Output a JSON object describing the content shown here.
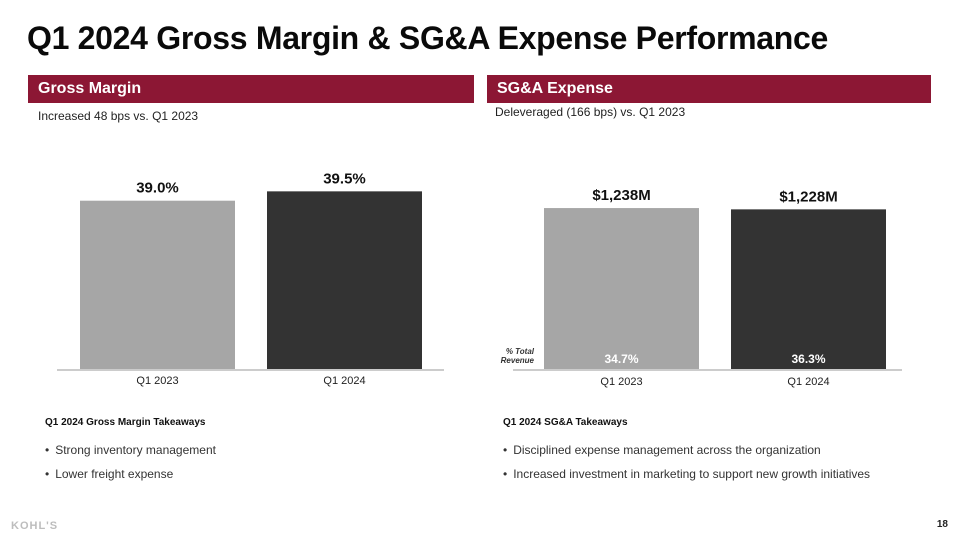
{
  "title": "Q1 2024 Gross Margin & SG&A Expense Performance",
  "sections": {
    "gross_margin": {
      "header": "Gross Margin",
      "subtitle": "Increased 48 bps vs. Q1 2023",
      "takeaways_title": "Q1 2024 Gross Margin Takeaways",
      "takeaways": [
        "Strong inventory management",
        "Lower freight expense"
      ]
    },
    "sga": {
      "header": "SG&A Expense",
      "subtitle": "Deleveraged (166 bps) vs. Q1 2023",
      "takeaways_title": "Q1 2024 SG&A Takeaways",
      "takeaways": [
        "Disciplined expense management across the organization",
        "Increased investment in marketing to support new growth initiatives"
      ],
      "row_label_line1": "% Total",
      "row_label_line2": "Revenue"
    }
  },
  "colors": {
    "accent": "#8c1734",
    "bar_prior": "#a6a6a6",
    "bar_current": "#333333"
  },
  "footer": {
    "logo": "KOHL'S",
    "page_number": "18"
  },
  "chart_data": [
    {
      "type": "bar",
      "title": "Gross Margin",
      "categories": [
        "Q1 2023",
        "Q1 2024"
      ],
      "values": [
        39.0,
        39.5
      ],
      "data_labels": [
        "39.0%",
        "39.5%"
      ],
      "unit": "%",
      "ylim": [
        0,
        40
      ],
      "grid": false,
      "xlabel": "",
      "ylabel": ""
    },
    {
      "type": "bar",
      "title": "SG&A Expense",
      "categories": [
        "Q1 2023",
        "Q1 2024"
      ],
      "values": [
        1238,
        1228
      ],
      "data_labels": [
        "$1,238M",
        "$1,228M"
      ],
      "unit": "$M",
      "pct_total_revenue": [
        34.7,
        36.3
      ],
      "pct_total_revenue_labels": [
        "34.7%",
        "36.3%"
      ],
      "ylim": [
        0,
        1300
      ],
      "grid": false,
      "xlabel": "",
      "ylabel": ""
    }
  ]
}
